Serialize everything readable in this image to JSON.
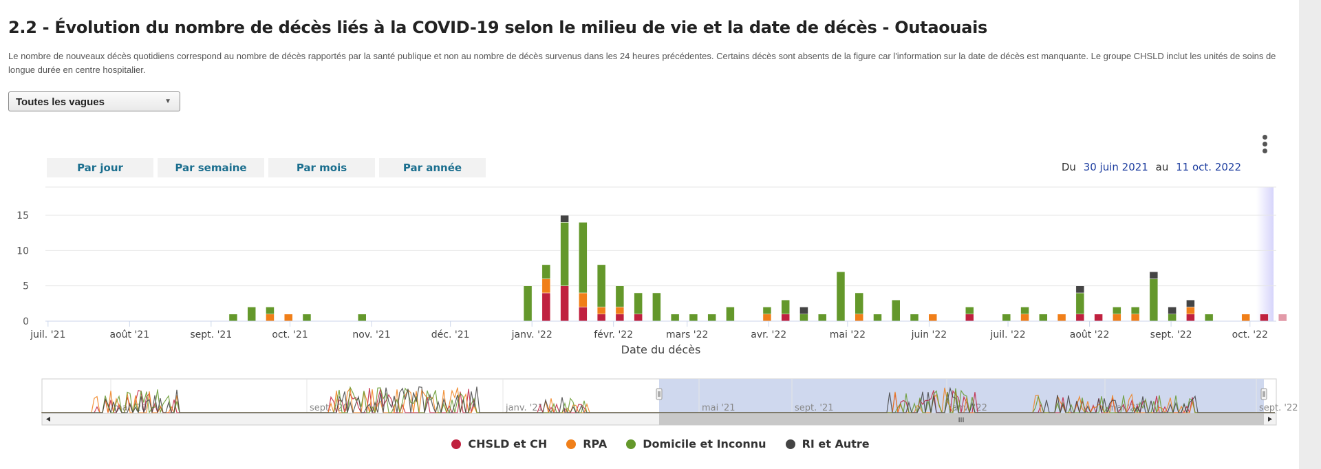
{
  "page": {
    "title": "2.2 - Évolution du nombre de décès liés à la COVID-19 selon le milieu de vie et la date de décès - Outaouais",
    "description": "Le nombre de nouveaux décès quotidiens correspond au nombre de décès rapportés par la santé publique et non au nombre de décès survenus dans les 24 heures précédentes. Certains décès sont absents de la figure car l'information sur la date de décès est manquante. Le groupe CHSLD inclut les unités de soins de longue durée en centre hospitalier."
  },
  "controls": {
    "wave_select": "Toutes les vagues",
    "menu_icon": "kebab-menu-icon",
    "period_buttons": [
      "Par jour",
      "Par semaine",
      "Par mois",
      "Par année"
    ],
    "range_from_label": "Du",
    "range_from": "30 juin 2021",
    "range_to_label": "au",
    "range_to": "11 oct. 2022"
  },
  "colors": {
    "CHSLD et CH": "#c0213f",
    "RPA": "#f07f19",
    "Domicile et Inconnu": "#64982b",
    "RI et Autre": "#444444"
  },
  "chart_data": {
    "type": "bar",
    "stacked": true,
    "xlabel": "Date du décès",
    "ylabel": "",
    "ylim": [
      0,
      19
    ],
    "yticks": [
      0,
      5,
      10,
      15
    ],
    "x_ticks": [
      "juil. '21",
      "août '21",
      "sept. '21",
      "oct. '21",
      "nov. '21",
      "déc. '21",
      "janv. '22",
      "févr. '22",
      "mars '22",
      "avr. '22",
      "mai '22",
      "juin '22",
      "juil. '22",
      "août '22",
      "sept. '22",
      "oct. '22"
    ],
    "x_tick_dates": [
      "2021-07-01",
      "2021-08-01",
      "2021-09-01",
      "2021-10-01",
      "2021-11-01",
      "2021-12-01",
      "2022-01-01",
      "2022-02-01",
      "2022-03-01",
      "2022-04-01",
      "2022-05-01",
      "2022-06-01",
      "2022-07-01",
      "2022-08-01",
      "2022-09-01",
      "2022-10-01"
    ],
    "x_tick_display": [
      "juil. '21",
      "août '21",
      "sept. '21",
      "oct. '21",
      "nov. '21",
      "déc. '21",
      "janv. '22",
      "févr. '22",
      "mars '22",
      "avr. '22",
      "mai '22",
      "juin '22",
      "juil. '22",
      "août '22",
      "sept. '22",
      "oct. '22"
    ],
    "xlim": [
      "2021-06-30",
      "2022-10-11"
    ],
    "grid": true,
    "legend_position": "bottom",
    "series_names": [
      "CHSLD et CH",
      "RPA",
      "Domicile et Inconnu",
      "RI et Autre"
    ],
    "bars": [
      {
        "week": "2021-09-06",
        "chsld": 0,
        "rpa": 0,
        "domicile": 1,
        "ri": 0
      },
      {
        "week": "2021-09-13",
        "chsld": 0,
        "rpa": 0,
        "domicile": 2,
        "ri": 0
      },
      {
        "week": "2021-09-20",
        "chsld": 0,
        "rpa": 1,
        "domicile": 1,
        "ri": 0
      },
      {
        "week": "2021-09-27",
        "chsld": 0,
        "rpa": 1,
        "domicile": 0,
        "ri": 0
      },
      {
        "week": "2021-10-04",
        "chsld": 0,
        "rpa": 0,
        "domicile": 1,
        "ri": 0
      },
      {
        "week": "2021-10-25",
        "chsld": 0,
        "rpa": 0,
        "domicile": 1,
        "ri": 0
      },
      {
        "week": "2021-12-27",
        "chsld": 0,
        "rpa": 0,
        "domicile": 5,
        "ri": 0
      },
      {
        "week": "2022-01-03",
        "chsld": 4,
        "rpa": 2,
        "domicile": 2,
        "ri": 0
      },
      {
        "week": "2022-01-10",
        "chsld": 5,
        "rpa": 0,
        "domicile": 9,
        "ri": 1
      },
      {
        "week": "2022-01-17",
        "chsld": 2,
        "rpa": 2,
        "domicile": 10,
        "ri": 0
      },
      {
        "week": "2022-01-24",
        "chsld": 1,
        "rpa": 1,
        "domicile": 6,
        "ri": 0
      },
      {
        "week": "2022-01-31",
        "chsld": 1,
        "rpa": 1,
        "domicile": 3,
        "ri": 0
      },
      {
        "week": "2022-02-07",
        "chsld": 1,
        "rpa": 0,
        "domicile": 3,
        "ri": 0
      },
      {
        "week": "2022-02-14",
        "chsld": 0,
        "rpa": 0,
        "domicile": 4,
        "ri": 0
      },
      {
        "week": "2022-02-21",
        "chsld": 0,
        "rpa": 0,
        "domicile": 1,
        "ri": 0
      },
      {
        "week": "2022-02-28",
        "chsld": 0,
        "rpa": 0,
        "domicile": 1,
        "ri": 0
      },
      {
        "week": "2022-03-07",
        "chsld": 0,
        "rpa": 0,
        "domicile": 1,
        "ri": 0
      },
      {
        "week": "2022-03-14",
        "chsld": 0,
        "rpa": 0,
        "domicile": 2,
        "ri": 0
      },
      {
        "week": "2022-03-28",
        "chsld": 0,
        "rpa": 1,
        "domicile": 1,
        "ri": 0
      },
      {
        "week": "2022-04-04",
        "chsld": 1,
        "rpa": 0,
        "domicile": 2,
        "ri": 0
      },
      {
        "week": "2022-04-11",
        "chsld": 0,
        "rpa": 0,
        "domicile": 1,
        "ri": 1
      },
      {
        "week": "2022-04-18",
        "chsld": 0,
        "rpa": 0,
        "domicile": 1,
        "ri": 0
      },
      {
        "week": "2022-04-25",
        "chsld": 0,
        "rpa": 0,
        "domicile": 7,
        "ri": 0
      },
      {
        "week": "2022-05-02",
        "chsld": 0,
        "rpa": 1,
        "domicile": 3,
        "ri": 0
      },
      {
        "week": "2022-05-09",
        "chsld": 0,
        "rpa": 0,
        "domicile": 1,
        "ri": 0
      },
      {
        "week": "2022-05-16",
        "chsld": 0,
        "rpa": 0,
        "domicile": 3,
        "ri": 0
      },
      {
        "week": "2022-05-23",
        "chsld": 0,
        "rpa": 0,
        "domicile": 1,
        "ri": 0
      },
      {
        "week": "2022-05-30",
        "chsld": 0,
        "rpa": 1,
        "domicile": 0,
        "ri": 0
      },
      {
        "week": "2022-06-13",
        "chsld": 1,
        "rpa": 0,
        "domicile": 1,
        "ri": 0
      },
      {
        "week": "2022-06-27",
        "chsld": 0,
        "rpa": 0,
        "domicile": 1,
        "ri": 0
      },
      {
        "week": "2022-07-04",
        "chsld": 0,
        "rpa": 1,
        "domicile": 1,
        "ri": 0
      },
      {
        "week": "2022-07-11",
        "chsld": 0,
        "rpa": 0,
        "domicile": 1,
        "ri": 0
      },
      {
        "week": "2022-07-18",
        "chsld": 0,
        "rpa": 1,
        "domicile": 0,
        "ri": 0
      },
      {
        "week": "2022-07-25",
        "chsld": 1,
        "rpa": 0,
        "domicile": 3,
        "ri": 1
      },
      {
        "week": "2022-08-01",
        "chsld": 1,
        "rpa": 0,
        "domicile": 0,
        "ri": 0
      },
      {
        "week": "2022-08-08",
        "chsld": 0,
        "rpa": 1,
        "domicile": 1,
        "ri": 0
      },
      {
        "week": "2022-08-15",
        "chsld": 0,
        "rpa": 1,
        "domicile": 1,
        "ri": 0
      },
      {
        "week": "2022-08-22",
        "chsld": 0,
        "rpa": 0,
        "domicile": 6,
        "ri": 1
      },
      {
        "week": "2022-08-29",
        "chsld": 0,
        "rpa": 0,
        "domicile": 1,
        "ri": 1
      },
      {
        "week": "2022-09-05",
        "chsld": 1,
        "rpa": 1,
        "domicile": 0,
        "ri": 1
      },
      {
        "week": "2022-09-12",
        "chsld": 0,
        "rpa": 0,
        "domicile": 1,
        "ri": 0
      },
      {
        "week": "2022-09-26",
        "chsld": 0,
        "rpa": 1,
        "domicile": 0,
        "ri": 0
      },
      {
        "week": "2022-10-03",
        "chsld": 1,
        "rpa": 0,
        "domicile": 0,
        "ri": 0
      },
      {
        "week": "2022-10-10",
        "chsld": 1,
        "rpa": 0,
        "domicile": 0,
        "ri": 0,
        "faded": true
      }
    ]
  },
  "navigator": {
    "labels": [
      "mai '20",
      "sept. '20",
      "janv. '21",
      "mai '21",
      "sept. '21",
      "janv. '22",
      "mai '22",
      "sept. '22"
    ],
    "scroll_grip": "III"
  },
  "legend": [
    {
      "label": "CHSLD et CH",
      "color": "#c0213f"
    },
    {
      "label": "RPA",
      "color": "#f07f19"
    },
    {
      "label": "Domicile et Inconnu",
      "color": "#64982b"
    },
    {
      "label": "RI et Autre",
      "color": "#444444"
    }
  ]
}
